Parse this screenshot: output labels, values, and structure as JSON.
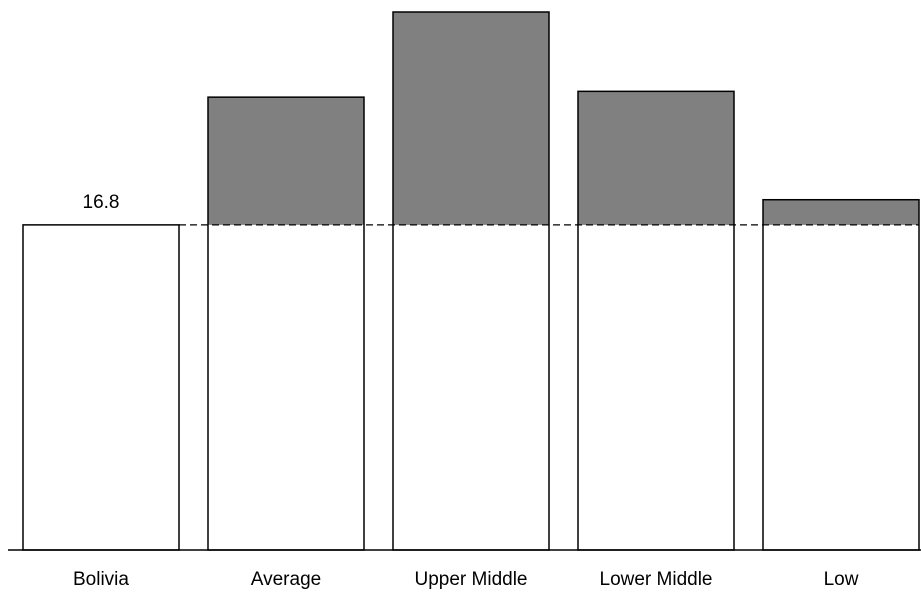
{
  "chart_data": {
    "type": "bar",
    "categories": [
      "Bolivia",
      "Average",
      "Upper Middle",
      "Lower Middle",
      "Low"
    ],
    "values": [
      16.8,
      23.4,
      27.8,
      23.7,
      18.1
    ],
    "color": "#808080"
  }
}
